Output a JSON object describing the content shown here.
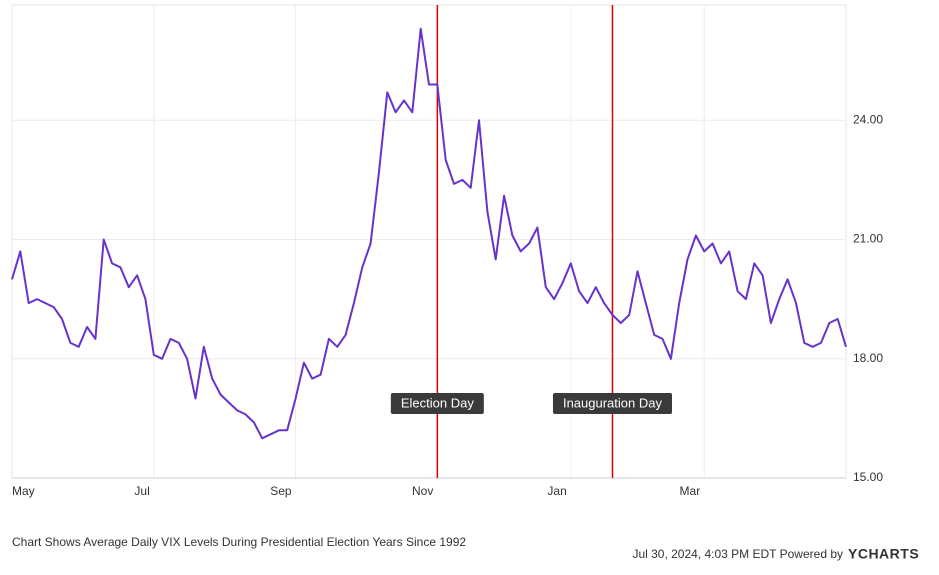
{
  "chart_data": {
    "type": "line",
    "categories": [
      "May",
      null,
      null,
      null,
      null,
      null,
      null,
      null,
      null,
      null,
      null,
      null,
      null,
      null,
      null,
      null,
      null,
      "Jul",
      null,
      null,
      null,
      null,
      null,
      null,
      null,
      null,
      null,
      null,
      null,
      null,
      null,
      null,
      null,
      null,
      "Sep",
      null,
      null,
      null,
      null,
      null,
      null,
      null,
      null,
      null,
      null,
      null,
      null,
      null,
      null,
      null,
      null,
      "Nov",
      null,
      null,
      null,
      null,
      null,
      null,
      null,
      null,
      null,
      null,
      null,
      null,
      null,
      null,
      null,
      "Jan",
      null,
      null,
      null,
      null,
      null,
      null,
      null,
      null,
      null,
      null,
      null,
      null,
      null,
      null,
      null,
      "Mar",
      null,
      null,
      null,
      null,
      null,
      null,
      null,
      null,
      null,
      null,
      null,
      null,
      null,
      null,
      null,
      null,
      null
    ],
    "series": [
      {
        "color": "#6633cc",
        "values": [
          20.0,
          20.7,
          19.4,
          19.5,
          19.4,
          19.3,
          19.0,
          18.4,
          18.3,
          18.8,
          18.5,
          21.0,
          20.4,
          20.3,
          19.8,
          20.1,
          19.5,
          18.1,
          18.0,
          18.5,
          18.4,
          18.0,
          17.0,
          18.3,
          17.5,
          17.1,
          16.9,
          16.7,
          16.6,
          16.4,
          16.0,
          16.1,
          16.2,
          16.2,
          17.0,
          17.9,
          17.5,
          17.6,
          18.5,
          18.3,
          18.6,
          19.4,
          20.3,
          20.9,
          22.7,
          24.7,
          24.2,
          24.5,
          24.2,
          26.3,
          24.9,
          24.9,
          23.0,
          22.4,
          22.5,
          22.3,
          24.0,
          21.7,
          20.5,
          22.1,
          21.1,
          20.7,
          20.9,
          21.3,
          19.8,
          19.5,
          19.9,
          20.4,
          19.7,
          19.4,
          19.8,
          19.4,
          19.1,
          18.9,
          19.1,
          20.2,
          19.4,
          18.6,
          18.5,
          18.0,
          19.4,
          20.5,
          21.1,
          20.7,
          20.9,
          20.4,
          20.7,
          19.7,
          19.5,
          20.4,
          20.1,
          18.9,
          19.5,
          20.0,
          19.4,
          18.4,
          18.3,
          18.4,
          18.9,
          19.0,
          18.3
        ]
      }
    ],
    "ylim": [
      15,
      26.9
    ],
    "yticks": [
      {
        "value": 15,
        "label": "15.00"
      },
      {
        "value": 18,
        "label": "18.00"
      },
      {
        "value": 21,
        "label": "21.00"
      },
      {
        "value": 24,
        "label": "24.00"
      }
    ],
    "grid": true,
    "annotations": [
      {
        "label": "Election Day",
        "x": 51,
        "color": "#e00000"
      },
      {
        "label": "Inauguration Day",
        "x": 72,
        "color": "#e00000"
      }
    ],
    "caption": "Chart Shows Average Daily VIX Levels During Presidential Election Years Since 1992",
    "source": "Jul 30, 2024, 4:03 PM EDT Powered by",
    "logo": "YCHARTS"
  }
}
